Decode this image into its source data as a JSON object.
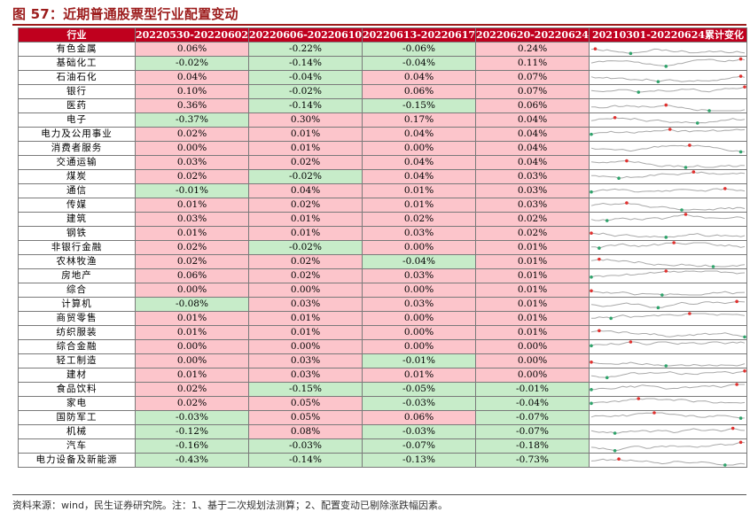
{
  "title": "图 57：近期普通股票型行业配置变动",
  "footer": "资料来源：wind，民生证券研究院。注：1、基于二次规划法测算；2、配置变动已剔除涨跌幅因素。",
  "colors": {
    "header": "#c0001e",
    "positive": "#fcc5cb",
    "negative": "#c7ecc9",
    "spark_line": "#a9a9a9",
    "spark_max": "#e0312f",
    "spark_min": "#2fa36b"
  },
  "headers": [
    "行业",
    "20220530-20220602",
    "20220606-20220610",
    "20220613-20220617",
    "20220620-20220624",
    "20210301-20220624累计变化"
  ],
  "rows": [
    {
      "industry": "有色金属",
      "values": [
        "0.06%",
        "-0.22%",
        "-0.06%",
        "0.24%"
      ]
    },
    {
      "industry": "基础化工",
      "values": [
        "-0.02%",
        "-0.14%",
        "-0.04%",
        "0.11%"
      ]
    },
    {
      "industry": "石油石化",
      "values": [
        "0.04%",
        "-0.04%",
        "0.04%",
        "0.07%"
      ]
    },
    {
      "industry": "银行",
      "values": [
        "0.10%",
        "-0.02%",
        "0.06%",
        "0.07%"
      ]
    },
    {
      "industry": "医药",
      "values": [
        "0.36%",
        "-0.14%",
        "-0.15%",
        "0.06%"
      ]
    },
    {
      "industry": "电子",
      "values": [
        "-0.37%",
        "0.30%",
        "0.17%",
        "0.04%"
      ]
    },
    {
      "industry": "电力及公用事业",
      "values": [
        "0.02%",
        "0.01%",
        "0.04%",
        "0.04%"
      ]
    },
    {
      "industry": "消费者服务",
      "values": [
        "0.00%",
        "0.01%",
        "0.00%",
        "0.04%"
      ]
    },
    {
      "industry": "交通运输",
      "values": [
        "0.03%",
        "0.02%",
        "0.04%",
        "0.04%"
      ]
    },
    {
      "industry": "煤炭",
      "values": [
        "0.02%",
        "-0.02%",
        "0.04%",
        "0.03%"
      ]
    },
    {
      "industry": "通信",
      "values": [
        "-0.01%",
        "0.04%",
        "0.01%",
        "0.03%"
      ]
    },
    {
      "industry": "传媒",
      "values": [
        "0.01%",
        "0.02%",
        "0.01%",
        "0.03%"
      ]
    },
    {
      "industry": "建筑",
      "values": [
        "0.03%",
        "0.01%",
        "0.02%",
        "0.02%"
      ]
    },
    {
      "industry": "钢铁",
      "values": [
        "0.01%",
        "0.01%",
        "0.03%",
        "0.02%"
      ]
    },
    {
      "industry": "非银行金融",
      "values": [
        "0.02%",
        "-0.02%",
        "0.00%",
        "0.01%"
      ]
    },
    {
      "industry": "农林牧渔",
      "values": [
        "0.02%",
        "0.02%",
        "-0.04%",
        "0.01%"
      ]
    },
    {
      "industry": "房地产",
      "values": [
        "0.06%",
        "0.02%",
        "0.03%",
        "0.01%"
      ]
    },
    {
      "industry": "综合",
      "values": [
        "0.00%",
        "0.00%",
        "0.00%",
        "0.01%"
      ]
    },
    {
      "industry": "计算机",
      "values": [
        "-0.08%",
        "0.03%",
        "0.03%",
        "0.01%"
      ]
    },
    {
      "industry": "商贸零售",
      "values": [
        "0.01%",
        "0.01%",
        "0.00%",
        "0.01%"
      ]
    },
    {
      "industry": "纺织服装",
      "values": [
        "0.01%",
        "0.01%",
        "0.00%",
        "0.01%"
      ]
    },
    {
      "industry": "综合金融",
      "values": [
        "0.00%",
        "0.00%",
        "0.00%",
        "0.00%"
      ]
    },
    {
      "industry": "轻工制造",
      "values": [
        "0.00%",
        "0.03%",
        "-0.01%",
        "0.00%"
      ]
    },
    {
      "industry": "建材",
      "values": [
        "0.01%",
        "0.03%",
        "0.01%",
        "0.00%"
      ]
    },
    {
      "industry": "食品饮料",
      "values": [
        "0.02%",
        "-0.15%",
        "-0.05%",
        "-0.01%"
      ]
    },
    {
      "industry": "家电",
      "values": [
        "0.02%",
        "0.05%",
        "-0.03%",
        "-0.04%"
      ]
    },
    {
      "industry": "国防军工",
      "values": [
        "-0.03%",
        "0.05%",
        "0.06%",
        "-0.07%"
      ]
    },
    {
      "industry": "机械",
      "values": [
        "-0.12%",
        "0.08%",
        "-0.03%",
        "-0.07%"
      ]
    },
    {
      "industry": "汽车",
      "values": [
        "-0.16%",
        "-0.03%",
        "-0.07%",
        "-0.18%"
      ]
    },
    {
      "industry": "电力设备及新能源",
      "values": [
        "-0.43%",
        "-0.14%",
        "-0.13%",
        "-0.73%"
      ]
    }
  ]
}
